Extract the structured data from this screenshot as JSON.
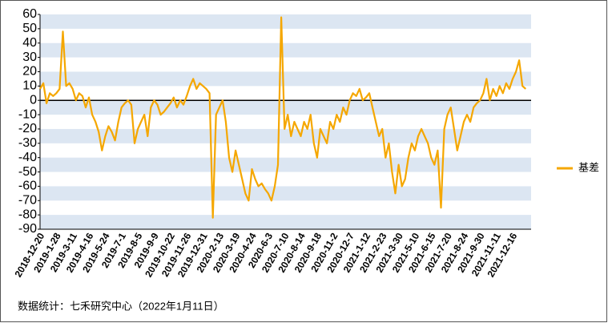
{
  "chart_data": {
    "type": "line",
    "categories": [
      "2018-12-20",
      null,
      null,
      null,
      null,
      "2019-1-28",
      null,
      null,
      null,
      null,
      "2019-3-11",
      null,
      null,
      null,
      null,
      "2019-4-16",
      null,
      null,
      null,
      null,
      "2019-5-24",
      null,
      null,
      null,
      null,
      "2019-7-1",
      null,
      null,
      null,
      null,
      "2019-8-5",
      null,
      null,
      null,
      null,
      "2019-9-9",
      null,
      null,
      null,
      null,
      "2019-10-22",
      null,
      null,
      null,
      null,
      "2019-11-26",
      null,
      null,
      null,
      null,
      "2019-12-31",
      null,
      null,
      null,
      null,
      "2020-2-13",
      null,
      null,
      null,
      null,
      "2020-3-19",
      null,
      null,
      null,
      null,
      "2020-4-24",
      null,
      null,
      null,
      null,
      "2020-6-3",
      null,
      null,
      null,
      null,
      "2020-7-10",
      null,
      null,
      null,
      null,
      "2020-8-14",
      null,
      null,
      null,
      null,
      "2020-9-18",
      null,
      null,
      null,
      null,
      "2020-11-2",
      null,
      null,
      null,
      null,
      "2020-12-7",
      null,
      null,
      null,
      null,
      "2021-1-12",
      null,
      null,
      null,
      null,
      "2021-2-23",
      null,
      null,
      null,
      null,
      "2021-3-30",
      null,
      null,
      null,
      null,
      "2021-5-10",
      null,
      null,
      null,
      null,
      "2021-6-15",
      null,
      null,
      null,
      null,
      "2021-7-20",
      null,
      null,
      null,
      null,
      "2021-8-24",
      null,
      null,
      null,
      null,
      "2021-9-30",
      null,
      null,
      null,
      null,
      "2021-11-11",
      null,
      null,
      null,
      null,
      "2021-12-16",
      null,
      null,
      null,
      null
    ],
    "series": [
      {
        "name": "基差",
        "color": "#f5a700",
        "values": [
          8,
          12,
          -2,
          5,
          3,
          5,
          8,
          48,
          10,
          12,
          8,
          0,
          5,
          3,
          -5,
          2,
          -10,
          -15,
          -22,
          -35,
          -25,
          -18,
          -22,
          -28,
          -15,
          -5,
          -2,
          0,
          -3,
          -30,
          -20,
          -15,
          -10,
          -25,
          -5,
          0,
          -3,
          -10,
          -8,
          -5,
          -2,
          2,
          -5,
          0,
          -3,
          3,
          10,
          15,
          8,
          12,
          10,
          8,
          5,
          -82,
          -10,
          -5,
          0,
          -15,
          -40,
          -50,
          -35,
          -45,
          -55,
          -65,
          -70,
          -48,
          -55,
          -60,
          -58,
          -62,
          -65,
          -70,
          -60,
          -45,
          58,
          -20,
          -10,
          -25,
          -15,
          -20,
          -25,
          -15,
          -20,
          -10,
          -30,
          -40,
          -20,
          -25,
          -30,
          -15,
          -20,
          -10,
          -15,
          -5,
          -10,
          0,
          5,
          3,
          8,
          0,
          2,
          5,
          -5,
          -15,
          -25,
          -20,
          -40,
          -30,
          -50,
          -65,
          -45,
          -60,
          -55,
          -40,
          -30,
          -35,
          -25,
          -20,
          -25,
          -30,
          -40,
          -45,
          -35,
          -75,
          -20,
          -10,
          -5,
          -20,
          -35,
          -25,
          -15,
          -10,
          -15,
          -5,
          -2,
          0,
          5,
          15,
          0,
          8,
          3,
          10,
          5,
          12,
          8,
          15,
          20,
          28,
          10,
          8
        ]
      }
    ],
    "ylim": [
      -90,
      60
    ],
    "yticks": [
      -90,
      -80,
      -70,
      -60,
      -50,
      -40,
      -30,
      -20,
      -10,
      0,
      10,
      20,
      30,
      40,
      50,
      60
    ],
    "grid": true,
    "band_color": "#dce6f2",
    "legend": "right",
    "source": "数据统计：七禾研究中心（2022年1月11日）"
  }
}
